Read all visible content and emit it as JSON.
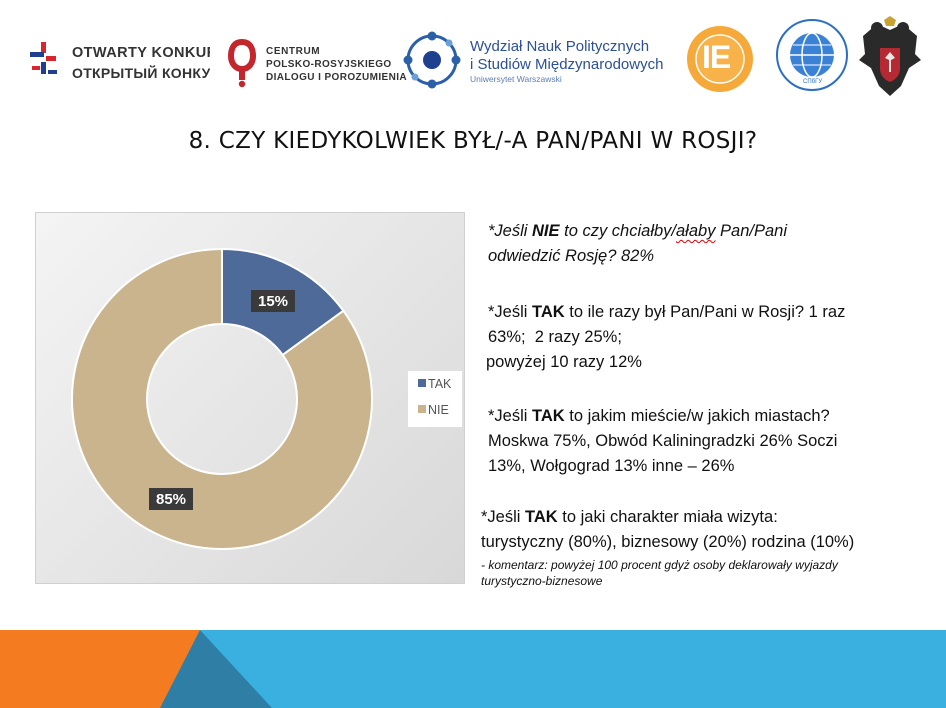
{
  "logos": {
    "konkurs": {
      "line1": "OTWARTY KONKURS",
      "line2": "ОТКРЫТЫЙ КОНКУРС"
    },
    "centrum": {
      "line1": "CENTRUM",
      "line2": "POLSKO-ROSYJSKIEGO",
      "line3": "DIALOGU I POROZUMIENIA"
    },
    "wydzial": {
      "line1": "Wydział Nauk Politycznych",
      "line2": "i Studiów Międzynarodowych",
      "line3": "Uniwersytet Warszawski"
    },
    "ie": {
      "mark": "IE"
    },
    "spbu": {
      "mark": "СПбГУ"
    }
  },
  "title": "8. CZY KIEDYKOLWIEK BYŁ/-A PAN/PANI W ROSJI?",
  "chart_data": {
    "type": "pie",
    "variant": "donut",
    "categories": [
      "TAK",
      "NIE"
    ],
    "values": [
      15,
      85
    ],
    "labels": [
      "15%",
      "85%"
    ],
    "colors": [
      "#4e6a99",
      "#c9b48e"
    ],
    "legend": "right"
  },
  "notes": {
    "q1": {
      "prefix": "*Jeśli ",
      "key": "NIE",
      "mid": " to czy chciałby/",
      "squiggle": "ałaby",
      "rest": " Pan/Pani",
      "line2": "odwiedzić Rosję? 82%"
    },
    "q2": {
      "prefix": "*Jeśli ",
      "key": "TAK",
      "line1": " to ile razy był Pan/Pani w Rosji? 1 raz",
      "line2": "63%;  2 razy 25%;",
      "line3": "powyżej 10 razy 12%"
    },
    "q3": {
      "prefix": "*Jeśli ",
      "key": "TAK",
      "line1": " to jakim mieście/w jakich miastach?",
      "line2": "Moskwa 75%, Obwód Kaliningradzki 26% Soczi",
      "line3": "13%, Wołgograd 13% inne – 26%"
    },
    "q4": {
      "prefix": "*Jeśli ",
      "key": "TAK",
      "line1": " to jaki charakter miała wizyta:",
      "line2": "turystyczny (80%), biznesowy (20%) rodzina (10%)"
    },
    "comment": {
      "line1": "- komentarz: powyżej 100 procent gdyż osoby deklarowały wyjazdy",
      "line2": "turystyczno-biznesowe"
    }
  },
  "colors": {
    "orange": "#f47b20",
    "blue": "#3ab0e0",
    "dark_blue": "#2e7ea5",
    "navy": "#1f4e79"
  }
}
